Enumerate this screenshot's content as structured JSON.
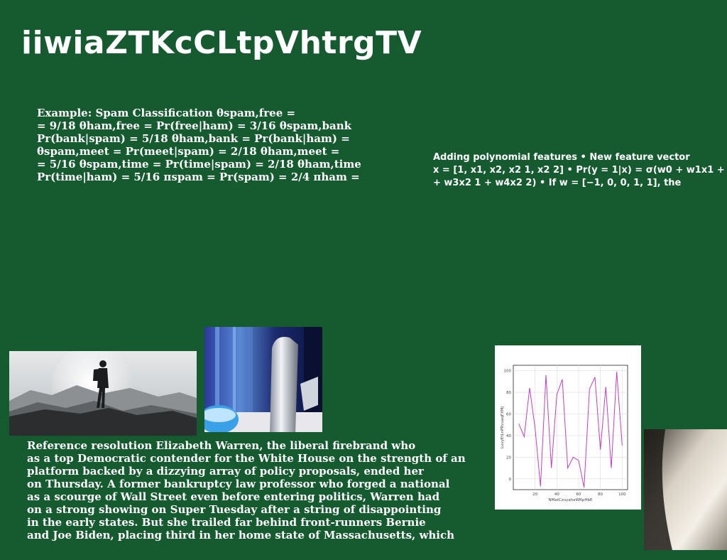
{
  "title": "iiwiaZTKcCLtpVhtrgTV",
  "spam_block": {
    "lines": [
      "Example: Spam Classification θspam,free =",
      "= 9/18 θham,free = Pr(free|ham) = 3/16 θspam,bank",
      "Pr(bank|spam) = 5/18 θham,bank = Pr(bank|ham) =",
      "θspam,meet = Pr(meet|spam) = 2/18 θham,meet =",
      "= 5/16 θspam,time = Pr(time|spam) = 2/18 θham,time",
      "Pr(time|ham) = 5/16 πspam = Pr(spam) = 2/4 πham ="
    ]
  },
  "poly_block": {
    "lines": [
      "Adding polynomial features • New feature vector",
      "x = [1, x1, x2, x2 1, x2 2] • Pr(y = 1|x) = σ(w0 + w1x1 +",
      "+ w3x2 1 + w4x2 2) • If w = [−1, 0, 0, 1, 1], the"
    ]
  },
  "article_block": {
    "lines": [
      "Reference resolution Elizabeth Warren, the liberal firebrand who",
      "as a top Democratic contender for the White House on the strength of an",
      "platform backed by a dizzying array of policy proposals, ended her",
      "on Thursday. A former bankruptcy law professor who forged a national",
      "as a scourge of Wall Street even before entering politics, Warren had",
      "on a strong showing on Super Tuesday after a string of disappointing",
      "in the early states. But she trailed far behind front-runners Bernie",
      "and Joe Biden, placing third in her home state of Massachusetts, which"
    ]
  },
  "chart_data": {
    "type": "line",
    "title": "",
    "xlabel": "NMatCzuyaheWRpHbE",
    "ylabel": "LuvyEtLnPRvuaqFXMj",
    "xlim": [
      0,
      105
    ],
    "ylim": [
      -10,
      105
    ],
    "xticks": [
      20,
      40,
      60,
      80,
      100
    ],
    "yticks": [
      0,
      20,
      40,
      60,
      80,
      100
    ],
    "grid": true,
    "color": "#c040c0",
    "x": [
      5,
      10,
      15,
      20,
      25,
      30,
      35,
      40,
      45,
      50,
      55,
      60,
      65,
      70,
      75,
      80,
      85,
      90,
      95,
      100
    ],
    "y": [
      51,
      39,
      84,
      47,
      -7,
      96,
      10,
      78,
      92,
      10,
      20,
      17,
      -8,
      83,
      94,
      27,
      85,
      10,
      99,
      31
    ]
  }
}
